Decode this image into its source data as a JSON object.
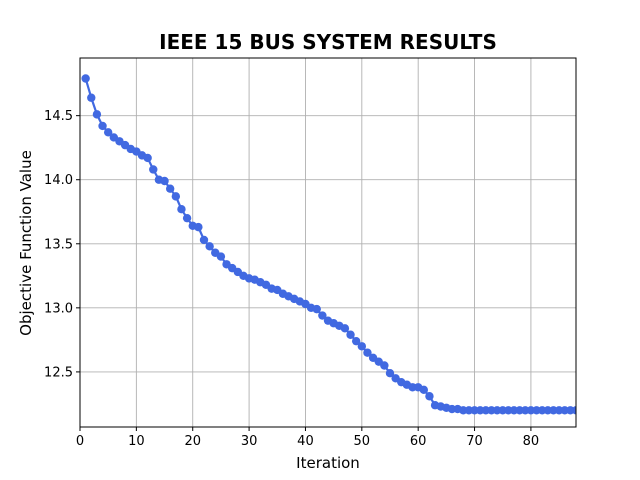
{
  "chart_data": {
    "type": "line",
    "title": "IEEE 15 BUS SYSTEM RESULTS",
    "xlabel": "Iteration",
    "ylabel": "Objective Function Value",
    "xlim": [
      0,
      88
    ],
    "ylim": [
      12.07,
      14.95
    ],
    "xticks": [
      0,
      10,
      20,
      30,
      40,
      50,
      60,
      70,
      80
    ],
    "yticks": [
      12.5,
      13.0,
      13.5,
      14.0,
      14.5
    ],
    "ytick_labels": [
      "12.5",
      "13.0",
      "13.5",
      "14.0",
      "14.5"
    ],
    "grid": true,
    "color": "#4169e1",
    "marker": "circle",
    "x": [
      1,
      2,
      3,
      4,
      5,
      6,
      7,
      8,
      9,
      10,
      11,
      12,
      13,
      14,
      15,
      16,
      17,
      18,
      19,
      20,
      21,
      22,
      23,
      24,
      25,
      26,
      27,
      28,
      29,
      30,
      31,
      32,
      33,
      34,
      35,
      36,
      37,
      38,
      39,
      40,
      41,
      42,
      43,
      44,
      45,
      46,
      47,
      48,
      49,
      50,
      51,
      52,
      53,
      54,
      55,
      56,
      57,
      58,
      59,
      60,
      61,
      62,
      63,
      64,
      65,
      66,
      67,
      68,
      69,
      70,
      71,
      72,
      73,
      74,
      75,
      76,
      77,
      78,
      79,
      80,
      81,
      82,
      83,
      84,
      85,
      86,
      87,
      88
    ],
    "y": [
      14.79,
      14.64,
      14.51,
      14.42,
      14.37,
      14.33,
      14.3,
      14.27,
      14.24,
      14.22,
      14.19,
      14.17,
      14.08,
      14.0,
      13.99,
      13.93,
      13.87,
      13.77,
      13.7,
      13.64,
      13.63,
      13.53,
      13.48,
      13.43,
      13.4,
      13.34,
      13.31,
      13.28,
      13.25,
      13.23,
      13.22,
      13.2,
      13.18,
      13.15,
      13.14,
      13.11,
      13.09,
      13.07,
      13.05,
      13.03,
      13.0,
      12.99,
      12.94,
      12.9,
      12.88,
      12.86,
      12.84,
      12.79,
      12.74,
      12.7,
      12.65,
      12.61,
      12.58,
      12.55,
      12.49,
      12.45,
      12.42,
      12.4,
      12.38,
      12.38,
      12.36,
      12.31,
      12.24,
      12.23,
      12.22,
      12.21,
      12.21,
      12.2,
      12.2,
      12.2,
      12.2,
      12.2,
      12.2,
      12.2,
      12.2,
      12.2,
      12.2,
      12.2,
      12.2,
      12.2,
      12.2,
      12.2,
      12.2,
      12.2,
      12.2,
      12.2,
      12.2,
      12.2
    ]
  }
}
